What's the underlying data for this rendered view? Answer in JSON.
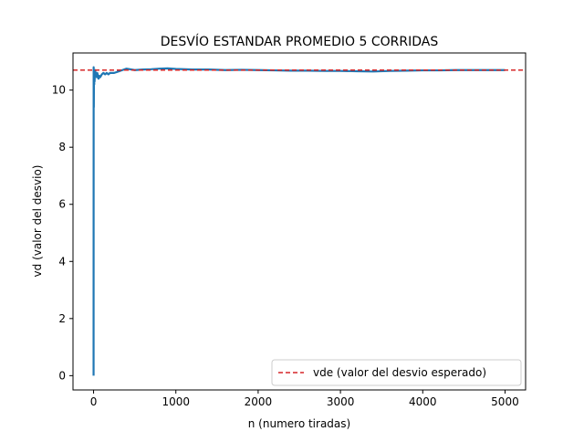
{
  "chart_data": {
    "type": "line",
    "title": "DESVÍO ESTANDAR PROMEDIO 5 CORRIDAS",
    "xlabel": "n (numero tiradas)",
    "ylabel": "vd (valor del desvio)",
    "xlim": [
      -250,
      5250
    ],
    "ylim": [
      -0.5,
      11.3
    ],
    "xticks": [
      0,
      1000,
      2000,
      3000,
      4000,
      5000
    ],
    "yticks": [
      0,
      2,
      4,
      6,
      8,
      10
    ],
    "grid": false,
    "legend_position": "lower right",
    "series": [
      {
        "color": "#1f77b4",
        "style": "solid",
        "x": [
          0,
          1,
          3,
          5,
          8,
          10,
          12,
          15,
          18,
          20,
          25,
          30,
          35,
          40,
          45,
          50,
          60,
          70,
          80,
          90,
          100,
          120,
          140,
          160,
          180,
          200,
          250,
          300,
          350,
          400,
          500,
          600,
          700,
          800,
          900,
          1000,
          1200,
          1400,
          1600,
          1800,
          2000,
          2200,
          2400,
          2600,
          2800,
          3000,
          3200,
          3400,
          3600,
          3800,
          4000,
          4200,
          4400,
          4600,
          4800,
          5000
        ],
        "y": [
          0,
          10.8,
          9.4,
          10.7,
          10.2,
          10.6,
          10.3,
          10.5,
          10.6,
          10.7,
          10.55,
          10.6,
          10.5,
          10.45,
          10.6,
          10.55,
          10.4,
          10.5,
          10.45,
          10.5,
          10.55,
          10.6,
          10.55,
          10.6,
          10.55,
          10.6,
          10.6,
          10.65,
          10.7,
          10.75,
          10.7,
          10.72,
          10.73,
          10.75,
          10.76,
          10.74,
          10.72,
          10.72,
          10.7,
          10.71,
          10.7,
          10.69,
          10.68,
          10.68,
          10.67,
          10.67,
          10.66,
          10.65,
          10.67,
          10.68,
          10.69,
          10.69,
          10.7,
          10.7,
          10.7,
          10.7
        ]
      },
      {
        "name": "vde (valor del desvio esperado)",
        "color": "#d62728",
        "style": "dashed",
        "y_constant": 10.7
      }
    ]
  }
}
